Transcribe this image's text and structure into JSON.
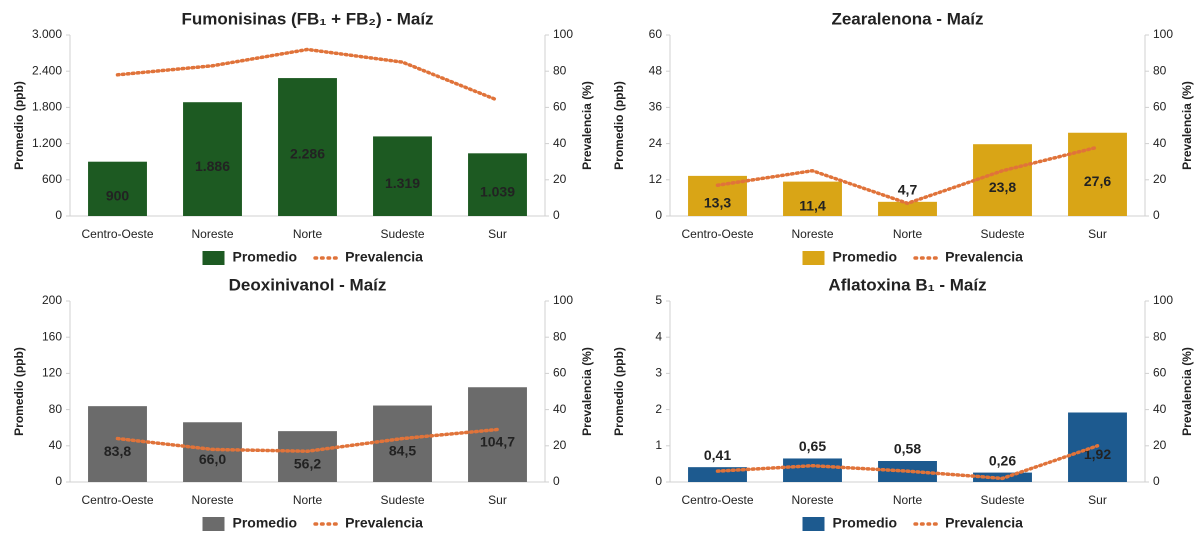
{
  "chart_data": [
    {
      "type": "bar",
      "title": "Fumonisinas (FB₁ + FB₂) - Maíz",
      "y_label": "Promedio (ppb)",
      "y2_label": "Prevalencia (%)",
      "categories": [
        "Centro-Oeste",
        "Noreste",
        "Norte",
        "Sudeste",
        "Sur"
      ],
      "series": [
        {
          "name": "Promedio",
          "color": "#1d5a22",
          "values": [
            900,
            1886,
            2286,
            1319,
            1039
          ],
          "value_labels": [
            "900",
            "1.886",
            "2.286",
            "1.319",
            "1.039"
          ]
        },
        {
          "name": "Prevalencia",
          "type": "line",
          "axis": "y2",
          "color": "#e0733a",
          "values": [
            78,
            83,
            92,
            85,
            64
          ]
        }
      ],
      "ylim": [
        0,
        3000
      ],
      "yticks": [
        0,
        600,
        {
          "value": 1200,
          "label": "1.200"
        },
        {
          "value": 1800,
          "label": "1.800"
        },
        {
          "value": 2400,
          "label": "2.400"
        },
        {
          "value": 3000,
          "label": "3.000"
        }
      ],
      "y2lim": [
        0,
        100
      ],
      "y2ticks": [
        0,
        20,
        40,
        60,
        80,
        100
      ]
    },
    {
      "type": "bar",
      "title": "Zearalenona - Maíz",
      "y_label": "Promedio (ppb)",
      "y2_label": "Prevalencia (%)",
      "categories": [
        "Centro-Oeste",
        "Noreste",
        "Norte",
        "Sudeste",
        "Sur"
      ],
      "series": [
        {
          "name": "Promedio",
          "color": "#d9a516",
          "values": [
            13.3,
            11.4,
            4.7,
            23.8,
            27.6
          ],
          "value_labels": [
            "13,3",
            "11,4",
            "4,7",
            "23,8",
            "27,6"
          ]
        },
        {
          "name": "Prevalencia",
          "type": "line",
          "axis": "y2",
          "color": "#e0733a",
          "values": [
            17,
            25,
            7,
            25,
            38
          ]
        }
      ],
      "ylim": [
        0,
        60
      ],
      "yticks": [
        0,
        12,
        24,
        36,
        48,
        60
      ],
      "y2lim": [
        0,
        100
      ],
      "y2ticks": [
        0,
        20,
        40,
        60,
        80,
        100
      ]
    },
    {
      "type": "bar",
      "title": "Deoxinivanol - Maíz",
      "y_label": "Promedio (ppb)",
      "y2_label": "Prevalencia (%)",
      "categories": [
        "Centro-Oeste",
        "Noreste",
        "Norte",
        "Sudeste",
        "Sur"
      ],
      "series": [
        {
          "name": "Promedio",
          "color": "#6b6b6b",
          "values": [
            83.8,
            66.0,
            56.2,
            84.5,
            104.7
          ],
          "value_labels": [
            "83,8",
            "66,0",
            "56,2",
            "84,5",
            "104,7"
          ]
        },
        {
          "name": "Prevalencia",
          "type": "line",
          "axis": "y2",
          "color": "#e0733a",
          "values": [
            24,
            18,
            17,
            24,
            29
          ]
        }
      ],
      "ylim": [
        0,
        200
      ],
      "yticks": [
        0,
        40,
        80,
        120,
        160,
        200
      ],
      "y2lim": [
        0,
        100
      ],
      "y2ticks": [
        0,
        20,
        40,
        60,
        80,
        100
      ]
    },
    {
      "type": "bar",
      "title": "Aflatoxina B₁ - Maíz",
      "y_label": "Promedio (ppb)",
      "y2_label": "Prevalencia (%)",
      "categories": [
        "Centro-Oeste",
        "Noreste",
        "Norte",
        "Sudeste",
        "Sur"
      ],
      "series": [
        {
          "name": "Promedio",
          "color": "#1d5a8f",
          "values": [
            0.41,
            0.65,
            0.58,
            0.26,
            1.92
          ],
          "value_labels": [
            "0,41",
            "0,65",
            "0,58",
            "0,26",
            "1,92"
          ]
        },
        {
          "name": "Prevalencia",
          "type": "line",
          "axis": "y2",
          "color": "#e0733a",
          "values": [
            6,
            9,
            6,
            2,
            20
          ]
        }
      ],
      "ylim": [
        0,
        5
      ],
      "yticks": [
        0,
        1,
        2,
        3,
        4,
        5
      ],
      "y2lim": [
        0,
        100
      ],
      "y2ticks": [
        0,
        20,
        40,
        60,
        80,
        100
      ]
    }
  ]
}
